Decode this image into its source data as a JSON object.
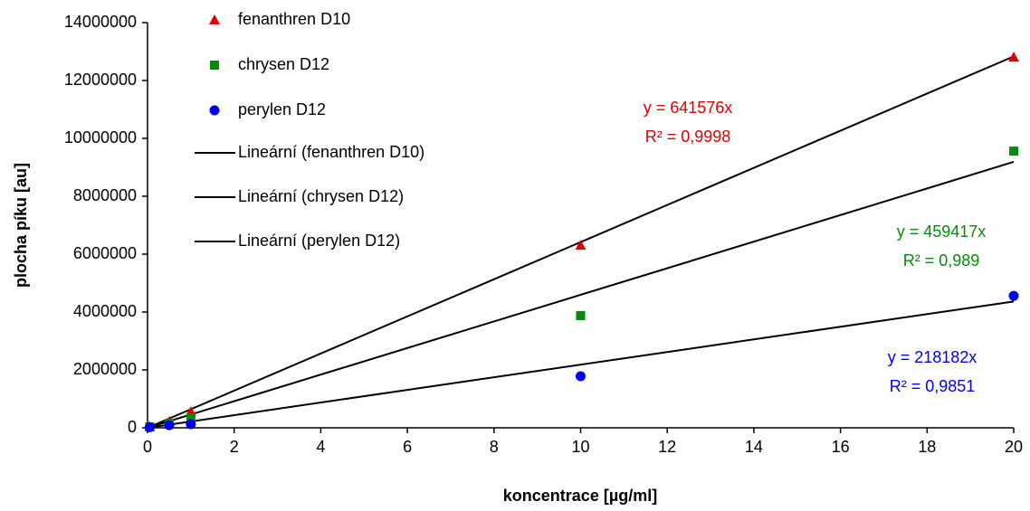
{
  "chart_data": {
    "type": "scatter",
    "x_label": "koncentrace [µg/ml]",
    "y_label": "plocha píku [au]",
    "x": [
      0.05,
      0.5,
      1,
      10,
      20
    ],
    "series": [
      {
        "name": "fenanthren D10",
        "color": "#e00000",
        "marker": "triangle",
        "values": [
          50000,
          220000,
          560000,
          6310000,
          12810000
        ]
      },
      {
        "name": "chrysen D12",
        "color": "#0a8a0a",
        "marker": "square",
        "values": [
          30000,
          150000,
          340000,
          3875000,
          9560000
        ]
      },
      {
        "name": "perylen D12",
        "color": "#0000ee",
        "marker": "circle",
        "values": [
          20000,
          90000,
          125000,
          1780000,
          4560000
        ]
      }
    ],
    "trendlines": [
      {
        "name": "Lineární (fenanthren D10)",
        "slope": 641576,
        "color": "#000000",
        "equation": "y = 641576x",
        "r2": "R² = 0,9998"
      },
      {
        "name": "Lineární (chrysen D12)",
        "slope": 459417,
        "color": "#000000",
        "equation": "y = 459417x",
        "r2": "R² = 0,989"
      },
      {
        "name": "Lineární (perylen D12)",
        "slope": 218182,
        "color": "#000000",
        "equation": "y = 218182x",
        "r2": "R² = 0,9851"
      }
    ],
    "xlim": [
      0,
      20
    ],
    "xticks": [
      0,
      2,
      4,
      6,
      8,
      10,
      12,
      14,
      16,
      18,
      20
    ],
    "ylim": [
      0,
      14000000
    ],
    "yticks": [
      0,
      2000000,
      4000000,
      6000000,
      8000000,
      10000000,
      12000000,
      14000000
    ],
    "grid": false,
    "legend": "top-left"
  }
}
